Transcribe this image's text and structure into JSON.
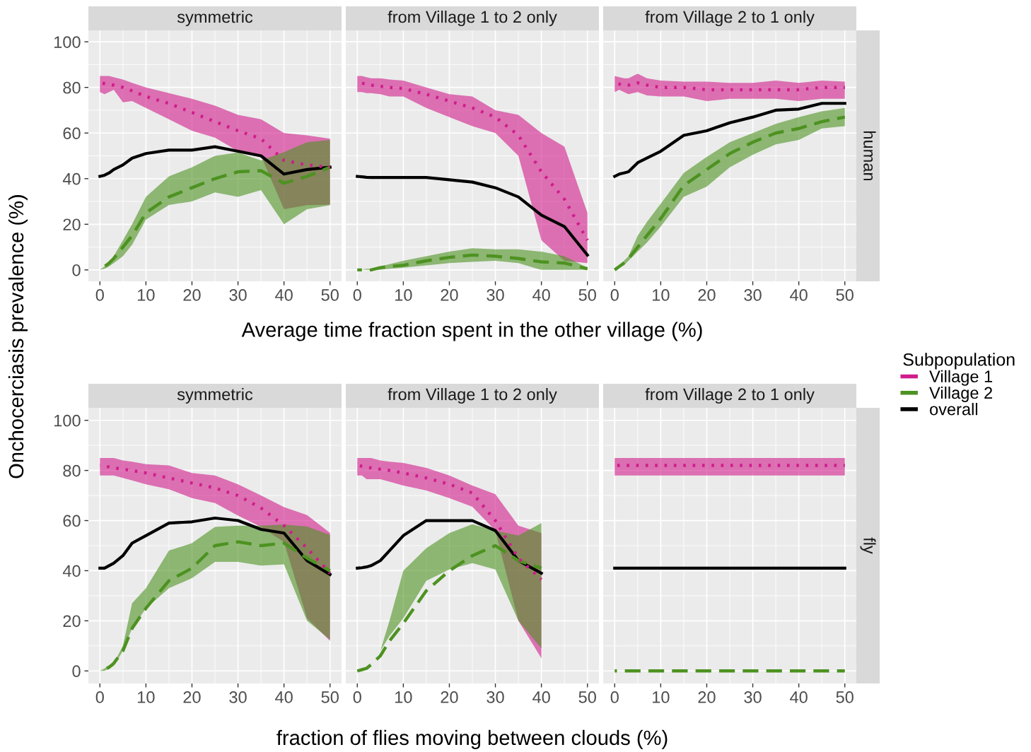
{
  "chart_data": [
    {
      "type": "line",
      "title": "symmetric",
      "ylabel": "Onchocerciasis prevalence (%)",
      "legend_title": "Subpopulation",
      "legend": "right",
      "xlim": [
        -2.5,
        52.5
      ],
      "ylim": [
        -5,
        105
      ],
      "xticks": [
        0,
        10,
        20,
        30,
        40,
        50
      ],
      "yticks": [
        0,
        20,
        40,
        60,
        80,
        100
      ],
      "grid": true,
      "x": [
        0,
        1,
        2,
        3,
        5,
        7,
        10,
        15,
        20,
        25,
        30,
        35,
        40,
        45,
        50
      ],
      "series": [
        {
          "name": "Village 1",
          "color": "#d01c8b",
          "line_style": "dotted",
          "values": [
            82,
            81.7,
            81.3,
            81,
            80,
            78.5,
            76,
            73,
            69,
            65,
            61,
            57.5,
            48,
            46,
            45
          ],
          "lower": [
            78,
            77,
            78,
            79,
            73.5,
            74,
            71,
            66,
            61,
            58,
            52,
            50,
            26.6,
            28.4,
            28.6
          ],
          "upper": [
            85,
            85,
            85,
            84.5,
            83.5,
            82,
            80,
            77.5,
            75,
            72,
            68,
            66,
            60,
            59,
            57.5
          ]
        },
        {
          "name": "Village 2",
          "color": "#4d9221",
          "line_style": "dashed",
          "values": [
            0,
            1.5,
            3,
            5,
            10,
            15,
            25,
            32,
            36,
            40,
            43,
            43.5,
            38,
            41,
            45
          ],
          "lower": [
            0,
            0.5,
            1.5,
            3,
            6,
            11,
            22,
            28.5,
            30,
            34,
            32,
            35,
            20,
            26.6,
            28.4
          ],
          "upper": [
            0,
            1.5,
            3,
            6,
            13,
            20,
            32,
            41,
            45,
            50,
            51.5,
            48,
            51.6,
            56,
            57
          ]
        },
        {
          "name": "overall",
          "color": "#000000",
          "line_style": "solid",
          "values": [
            41,
            41.5,
            42.5,
            44,
            46,
            49,
            51,
            52.5,
            52.5,
            54,
            52,
            50,
            42,
            44,
            45
          ]
        }
      ]
    },
    {
      "type": "line",
      "title": "from Village 1 to 2 only",
      "xlabel": "Average time fraction spent in the other village (%)",
      "xlim": [
        -2.5,
        52.5
      ],
      "ylim": [
        -5,
        105
      ],
      "xticks": [
        0,
        10,
        20,
        30,
        40,
        50
      ],
      "yticks": [
        0,
        20,
        40,
        60,
        80,
        100
      ],
      "grid": true,
      "tick_labels": "x",
      "x": [
        0,
        1,
        2,
        3,
        5,
        7,
        10,
        15,
        20,
        25,
        30,
        35,
        40,
        45,
        50
      ],
      "series": [
        {
          "color": "#d01c8b",
          "line_style": "dotted",
          "values": [
            82,
            81.8,
            81.5,
            81,
            80.5,
            80,
            79.5,
            77,
            74,
            71,
            67,
            59,
            43,
            31,
            13
          ],
          "lower": [
            78,
            78,
            77.5,
            77.5,
            77,
            76,
            76,
            71,
            67,
            63,
            60,
            50,
            13,
            4,
            3
          ],
          "upper": [
            85,
            85,
            84.5,
            84,
            84,
            83.5,
            83,
            80,
            77,
            76,
            70,
            68,
            60,
            54,
            25
          ]
        },
        {
          "color": "#4d9221",
          "line_style": "dashed",
          "values": [
            0,
            0,
            0,
            0,
            1,
            1.5,
            2,
            4,
            5.5,
            6.5,
            6,
            5,
            3.5,
            3,
            0.5
          ],
          "lower": [
            0,
            0,
            0,
            0,
            0,
            0.5,
            1,
            2,
            3,
            3.5,
            4,
            3,
            0,
            0,
            0
          ],
          "upper": [
            0,
            0,
            0.5,
            0.5,
            1.5,
            2.5,
            4,
            6,
            8,
            9.5,
            9,
            9,
            8,
            6,
            1
          ]
        },
        {
          "color": "#000000",
          "line_style": "solid",
          "values": [
            41,
            40.8,
            40.6,
            40.5,
            40.5,
            40.5,
            40.5,
            40.5,
            39.5,
            38.5,
            36,
            32,
            24,
            19,
            6.5
          ]
        }
      ]
    },
    {
      "type": "line",
      "title": "from Village 2 to 1 only",
      "annotations": [
        "human"
      ],
      "xlim": [
        -2.5,
        52.5
      ],
      "ylim": [
        -5,
        105
      ],
      "xticks": [
        0,
        10,
        20,
        30,
        40,
        50
      ],
      "yticks": [
        0,
        20,
        40,
        60,
        80,
        100
      ],
      "grid": true,
      "tick_labels": "x",
      "x": [
        0,
        1,
        2,
        3,
        5,
        7,
        10,
        15,
        20,
        25,
        30,
        35,
        40,
        45,
        50
      ],
      "series": [
        {
          "color": "#d01c8b",
          "line_style": "dotted",
          "values": [
            82,
            81.5,
            81,
            81,
            82,
            81,
            80,
            80,
            79,
            79,
            79,
            79,
            79,
            80,
            80
          ],
          "lower": [
            78,
            79,
            78,
            77,
            78,
            76.5,
            76,
            76,
            74,
            75,
            75,
            75,
            74,
            75,
            75
          ],
          "upper": [
            85,
            84.5,
            84,
            84,
            86,
            84,
            83,
            82.5,
            82.5,
            82,
            82,
            83,
            82,
            83,
            82.5
          ]
        },
        {
          "color": "#4d9221",
          "line_style": "dashed",
          "values": [
            0,
            1.5,
            3,
            5,
            10,
            15,
            22.5,
            37,
            44,
            51,
            56,
            60,
            62,
            65,
            67
          ],
          "lower": [
            0,
            1,
            2,
            4,
            8,
            12,
            19,
            32,
            36.5,
            45,
            50.5,
            55,
            57,
            62,
            63
          ],
          "upper": [
            0,
            2,
            4,
            6,
            15,
            21,
            29,
            42.5,
            49.5,
            56,
            60,
            64,
            67,
            69.5,
            71
          ]
        },
        {
          "color": "#000000",
          "line_style": "solid",
          "values": [
            41,
            42,
            42.5,
            43,
            47,
            49,
            52,
            59,
            61,
            64.5,
            67,
            70,
            70.5,
            73,
            73
          ]
        }
      ]
    },
    {
      "type": "line",
      "title": "symmetric",
      "xlim": [
        -2.5,
        52.5
      ],
      "ylim": [
        -5,
        105
      ],
      "xticks": [
        0,
        10,
        20,
        30,
        40,
        50
      ],
      "yticks": [
        0,
        20,
        40,
        60,
        80,
        100
      ],
      "grid": true,
      "x": [
        0,
        1,
        2,
        3,
        5,
        7,
        10,
        15,
        20,
        25,
        30,
        35,
        40,
        45,
        50
      ],
      "series": [
        {
          "color": "#d01c8b",
          "line_style": "dotted",
          "values": [
            82,
            81.7,
            81.4,
            81,
            80.5,
            80,
            79,
            77,
            75,
            73,
            70,
            65,
            58,
            49,
            39
          ],
          "lower": [
            78,
            78,
            78,
            78,
            77,
            76,
            74.5,
            72.5,
            69,
            67,
            62,
            57.5,
            51.4,
            21,
            12
          ],
          "upper": [
            85,
            85,
            85,
            85,
            84,
            83.5,
            82.5,
            82,
            79,
            78,
            74.5,
            70,
            65.4,
            62.2,
            55.1
          ]
        },
        {
          "color": "#4d9221",
          "line_style": "dashed",
          "values": [
            0,
            0.5,
            1.5,
            3,
            8,
            17,
            25,
            36,
            41,
            50,
            51.5,
            50,
            51,
            45,
            40
          ],
          "lower": [
            0,
            0,
            1,
            2,
            8,
            17,
            25,
            33,
            37,
            43.5,
            43.5,
            42,
            42.5,
            20,
            12.5
          ],
          "upper": [
            0,
            1,
            2,
            3,
            10,
            27,
            33,
            48,
            51,
            57.5,
            58,
            58,
            58.4,
            57.6,
            54.3
          ]
        },
        {
          "color": "#000000",
          "line_style": "solid",
          "values": [
            41,
            41,
            42,
            43,
            46,
            51,
            54,
            59,
            59.5,
            61,
            60,
            56.5,
            55,
            44,
            38.5
          ]
        }
      ]
    },
    {
      "type": "line",
      "title": "from Village 1 to 2 only",
      "xlabel": "fraction of flies moving between clouds (%)",
      "xlim": [
        -2.5,
        52.5
      ],
      "ylim": [
        -5,
        105
      ],
      "xticks": [
        0,
        10,
        20,
        30,
        40,
        50
      ],
      "yticks": [
        0,
        20,
        40,
        60,
        80,
        100
      ],
      "grid": true,
      "tick_labels": "x",
      "x": [
        0,
        1,
        2,
        3,
        5,
        7,
        10,
        15,
        20,
        25,
        30,
        35,
        40
      ],
      "series": [
        {
          "color": "#d01c8b",
          "line_style": "dotted",
          "values": [
            82,
            81.7,
            81.4,
            81,
            80.5,
            80,
            79,
            77,
            74.5,
            71,
            60,
            45,
            36.5
          ],
          "lower": [
            78,
            78,
            76.5,
            76.5,
            76.5,
            75.5,
            74,
            72,
            69,
            65.5,
            56,
            20,
            5
          ],
          "upper": [
            85,
            85,
            85,
            85,
            84,
            83.5,
            83,
            81,
            78,
            74,
            70.5,
            58,
            55
          ]
        },
        {
          "color": "#4d9221",
          "line_style": "dashed",
          "values": [
            0,
            0.5,
            1,
            2.5,
            6,
            12,
            19,
            32,
            40,
            46,
            50,
            44,
            41
          ],
          "lower": [
            0,
            0,
            1,
            3,
            8,
            14,
            21,
            36,
            40.5,
            43,
            40.5,
            20,
            9
          ],
          "upper": [
            0,
            0.5,
            1.5,
            3,
            8,
            20,
            40,
            49,
            55,
            58.5,
            56,
            54,
            59
          ]
        },
        {
          "color": "#000000",
          "line_style": "solid",
          "values": [
            41,
            41.2,
            41.5,
            42,
            44,
            48,
            54,
            60,
            60,
            60,
            56,
            44,
            39
          ]
        }
      ]
    },
    {
      "type": "line",
      "title": "from Village 2 to 1 only",
      "annotations": [
        "fly"
      ],
      "xlim": [
        -2.5,
        52.5
      ],
      "ylim": [
        -5,
        105
      ],
      "xticks": [
        0,
        10,
        20,
        30,
        40,
        50
      ],
      "yticks": [
        0,
        20,
        40,
        60,
        80,
        100
      ],
      "grid": true,
      "tick_labels": "x",
      "x": [
        0,
        50
      ],
      "series": [
        {
          "color": "#d01c8b",
          "line_style": "dotted",
          "values": [
            82,
            82
          ],
          "lower": [
            78,
            78
          ],
          "upper": [
            85,
            85
          ]
        },
        {
          "color": "#4d9221",
          "line_style": "dashed",
          "values": [
            0,
            0
          ]
        },
        {
          "color": "#000000",
          "line_style": "solid",
          "values": [
            41,
            41
          ]
        }
      ]
    }
  ]
}
